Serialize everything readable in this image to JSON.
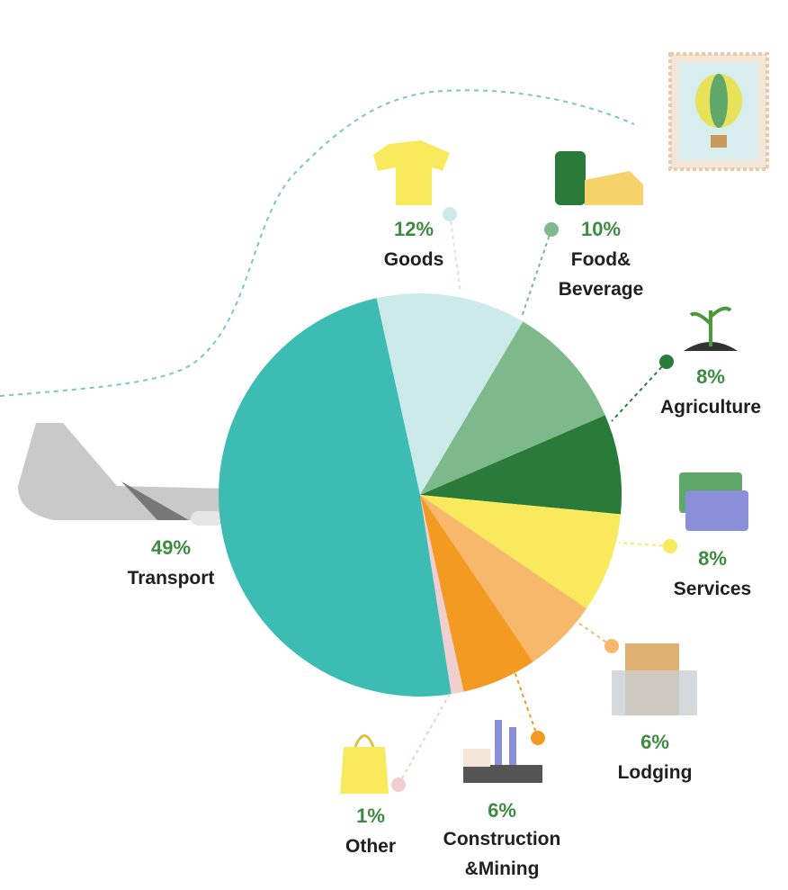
{
  "chart_data": {
    "type": "pie",
    "categories": [
      "Goods",
      "Food&\nBeverage",
      "Agriculture",
      "Services",
      "Lodging",
      "Construction\n&Mining",
      "Other",
      "Transport"
    ],
    "values": [
      12,
      10,
      8,
      8,
      6,
      6,
      1,
      49
    ],
    "value_labels": [
      "12%",
      "10%",
      "8%",
      "8%",
      "6%",
      "6%",
      "1%",
      "49%"
    ],
    "colors": [
      "#cdeaea",
      "#7db98a",
      "#2a7a3a",
      "#f8ea5c",
      "#f7b86c",
      "#f39a22",
      "#f1cfd0",
      "#3cbcb2"
    ]
  }
}
